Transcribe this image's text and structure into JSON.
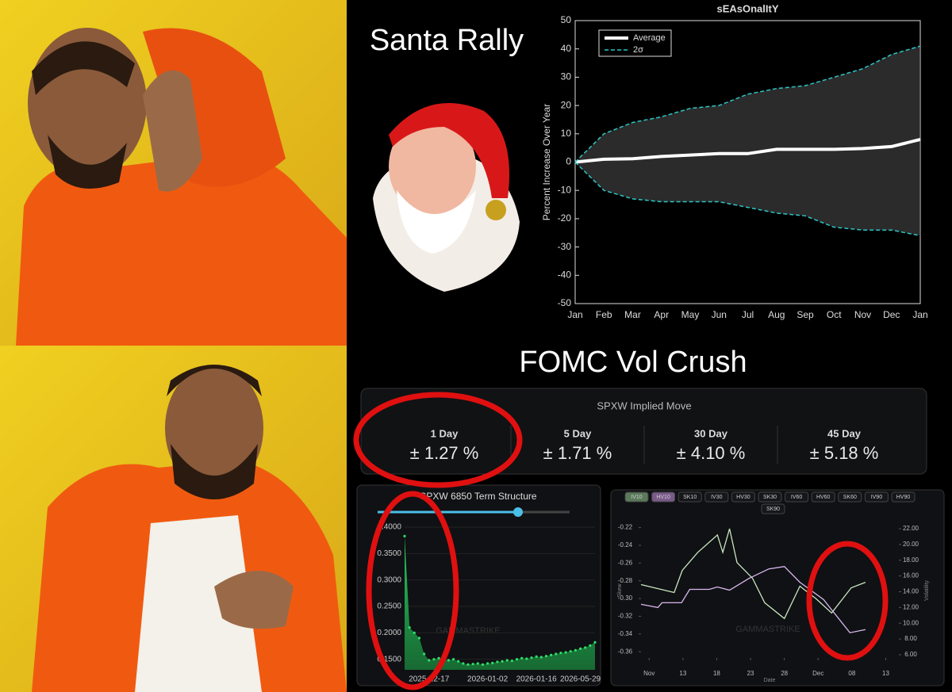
{
  "top_caption": "Santa Rally",
  "bottom_caption": "FOMC Vol Crush",
  "watermark": "GAMMASTRIKE",
  "seasonality": {
    "type": "line",
    "title": "sEAsOnalItY",
    "ylabel": "Percent Increase Over Year",
    "categories": [
      "Jan",
      "Feb",
      "Mar",
      "Apr",
      "May",
      "Jun",
      "Jul",
      "Aug",
      "Sep",
      "Oct",
      "Nov",
      "Dec",
      "Jan"
    ],
    "ylim": [
      -50,
      50
    ],
    "yticks": [
      -50,
      -40,
      -30,
      -20,
      -10,
      0,
      10,
      20,
      30,
      40,
      50
    ],
    "legend": "upper-left",
    "series": [
      {
        "name": "Average",
        "color": "#ffffff",
        "values": [
          0,
          1,
          1.2,
          2,
          2.5,
          3,
          3,
          4.5,
          4.5,
          4.5,
          4.8,
          5.5,
          8
        ]
      },
      {
        "name": "2σ",
        "color": "#2ec4c4",
        "values": [
          0,
          10,
          14,
          16,
          19,
          20,
          24,
          26,
          27,
          30,
          33,
          38,
          41
        ],
        "lower_values": [
          0,
          -10,
          -13,
          -14,
          -14,
          -14,
          -16,
          -18,
          -19,
          -23,
          -24,
          -24,
          -26
        ]
      }
    ]
  },
  "implied_move": {
    "title": "SPXW Implied Move",
    "items": [
      {
        "label": "1 Day",
        "value": "± 1.27 %"
      },
      {
        "label": "5 Day",
        "value": "± 1.71 %"
      },
      {
        "label": "30 Day",
        "value": "± 4.10 %"
      },
      {
        "label": "45 Day",
        "value": "± 5.18 %"
      }
    ]
  },
  "term_structure": {
    "type": "area",
    "title": "SPXW 6850 Term Structure",
    "color": "#2ee06a",
    "ylim": [
      0.13,
      0.4
    ],
    "yticks": [
      {
        "value": 0.15,
        "label": "0.1500"
      },
      {
        "value": 0.2,
        "label": "0.2000"
      },
      {
        "value": 0.25,
        "label": "0.2500"
      },
      {
        "value": 0.3,
        "label": "0.3000"
      },
      {
        "value": 0.35,
        "label": "0.3500"
      },
      {
        "value": 0.4,
        "label": "0.4000"
      }
    ],
    "categories": [
      null,
      null,
      null,
      null,
      null,
      "2025-12-17",
      null,
      null,
      null,
      null,
      null,
      null,
      null,
      null,
      null,
      null,
      null,
      "2026-01-02",
      null,
      null,
      null,
      null,
      null,
      null,
      null,
      null,
      null,
      "2026-01-16",
      null,
      null,
      null,
      null,
      null,
      null,
      null,
      null,
      "2026-05-29",
      null,
      null,
      null
    ],
    "values": [
      0.383,
      0.21,
      0.2,
      0.19,
      0.16,
      0.148,
      0.15,
      0.152,
      0.15,
      0.148,
      0.15,
      0.146,
      0.142,
      0.14,
      0.141,
      0.142,
      0.14,
      0.142,
      0.143,
      0.145,
      0.146,
      0.148,
      0.147,
      0.15,
      0.152,
      0.151,
      0.153,
      0.155,
      0.154,
      0.156,
      0.158,
      0.16,
      0.162,
      0.163,
      0.165,
      0.167,
      0.17,
      0.172,
      0.176,
      0.182
    ]
  },
  "skew_vol": {
    "type": "line",
    "buttons": [
      "IV10",
      "HV10",
      "SK10",
      "IV30",
      "HV30",
      "SK30",
      "IV60",
      "HV60",
      "SK60",
      "IV90",
      "HV90",
      "SK90"
    ],
    "ylabel": "Skew",
    "y2label": "Volatility",
    "xlabel": "Date",
    "xlim": [
      6.8,
      44
    ],
    "xticks": [
      {
        "value": 8,
        "label": "Nov"
      },
      13,
      18,
      23,
      28,
      {
        "value": 33,
        "label": "Dec"
      },
      {
        "value": 38,
        "label": "08"
      },
      {
        "value": 43,
        "label": "13"
      }
    ],
    "ylim": [
      -0.367,
      -0.215
    ],
    "yticks": [
      -0.22,
      -0.24,
      -0.26,
      -0.28,
      {
        "value": -0.3,
        "label": "-0.30"
      },
      -0.32,
      -0.34,
      -0.36
    ],
    "y2lim": [
      5.6,
      22.7
    ],
    "y2ticks": [
      {
        "value": 6,
        "label": "6.00"
      },
      {
        "value": 8,
        "label": "8.00"
      },
      {
        "value": 10,
        "label": "10.00"
      },
      {
        "value": 12,
        "label": "12.00"
      },
      {
        "value": 14,
        "label": "14.00"
      },
      {
        "value": 16,
        "label": "16.00"
      },
      {
        "value": 18,
        "label": "18.00"
      },
      {
        "value": 20,
        "label": "20.00"
      },
      {
        "value": 22,
        "label": "22.00"
      }
    ],
    "series": [
      {
        "name": "IV10",
        "color": "#c8e6c0",
        "axis": "y2",
        "x": [
          6.8,
          11.7,
          12.9,
          15.2,
          18.1,
          18.9,
          19.9,
          21,
          23.3,
          25.1,
          28,
          30.3,
          32.7,
          35,
          37.9,
          40
        ],
        "values": [
          14.9,
          13.9,
          16.7,
          19,
          21.2,
          19,
          22,
          17.7,
          15.7,
          12.6,
          10.6,
          14.7,
          13.1,
          11.3,
          14.5,
          15.2
        ]
      },
      {
        "name": "HV10",
        "color": "#d9b8f0",
        "axis": "y2",
        "x": [
          6.8,
          9.3,
          9.9,
          12.8,
          14,
          16.9,
          18.1,
          19.9,
          22.8,
          25.7,
          28,
          30.3,
          33.8,
          37.7,
          40
        ],
        "values": [
          12.4,
          12,
          12.6,
          12.6,
          14.3,
          14.3,
          14.6,
          14.2,
          15.7,
          16.9,
          17.2,
          15.2,
          13,
          8.8,
          9.2
        ]
      }
    ]
  }
}
